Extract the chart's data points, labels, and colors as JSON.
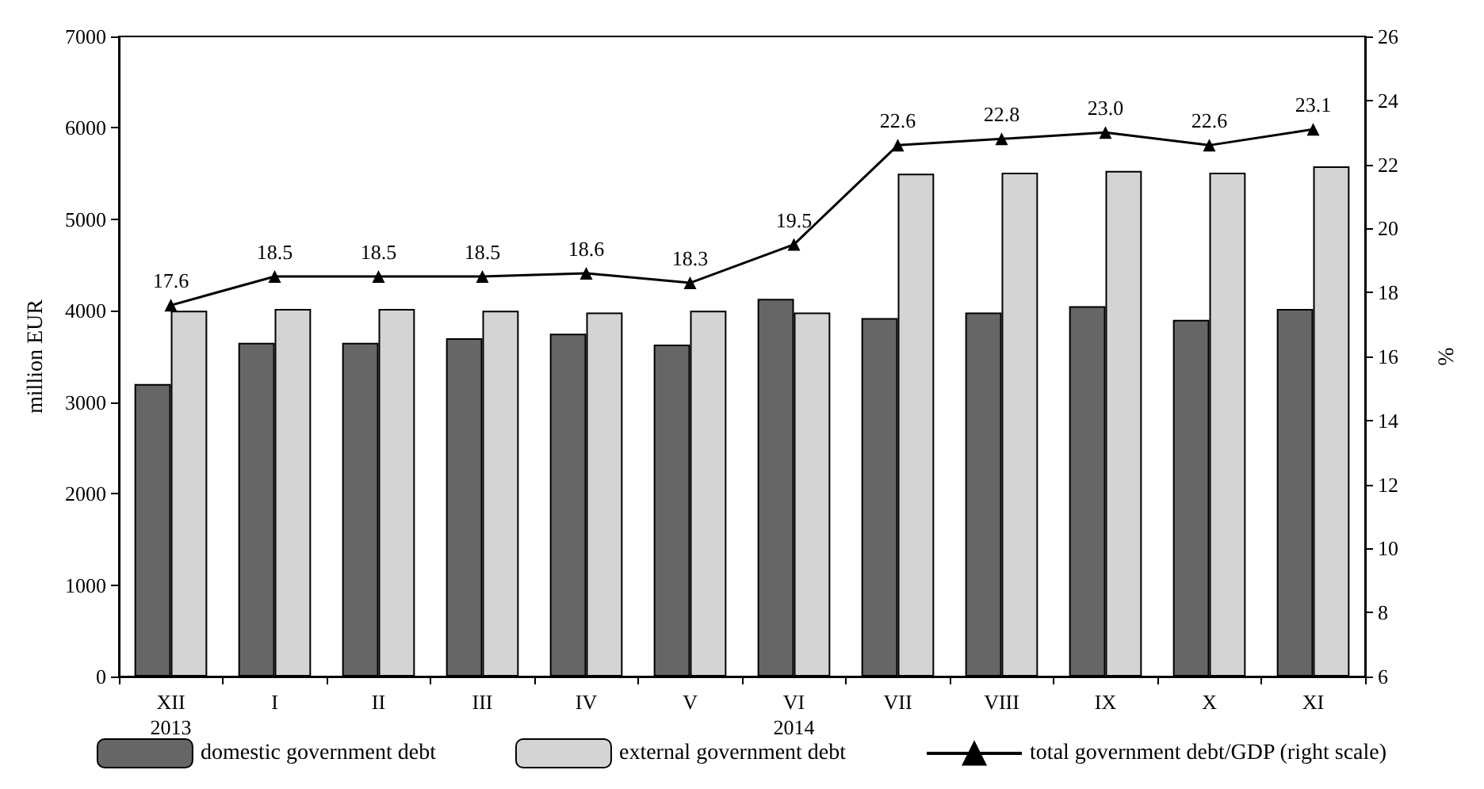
{
  "chart_data": {
    "type": "bar",
    "xlabel": null,
    "ylabel": "million EUR",
    "y2label": "%",
    "categories": [
      "XII\n2013",
      "I",
      "II",
      "III",
      "IV",
      "V",
      "VI\n2014",
      "VII",
      "VIII",
      "IX",
      "X",
      "XI"
    ],
    "series": [
      {
        "name": "domestic government debt",
        "color": "#666666",
        "values": [
          3200,
          3650,
          3650,
          3700,
          3750,
          3630,
          4130,
          3920,
          3980,
          4050,
          3900,
          4020
        ]
      },
      {
        "name": "external government debt",
        "color": "#d4d4d4",
        "values": [
          4000,
          4020,
          4020,
          4000,
          3980,
          4000,
          3980,
          5500,
          5510,
          5530,
          5510,
          5580
        ]
      },
      {
        "name": "total government debt/GDP (right scale)",
        "type": "line",
        "axis": "y2",
        "color": "#000000",
        "marker": "triangle",
        "values": [
          17.6,
          18.5,
          18.5,
          18.5,
          18.6,
          18.3,
          19.5,
          22.6,
          22.8,
          23.0,
          22.6,
          23.1
        ],
        "value_labels": [
          "17.6",
          "18.5",
          "18.5",
          "18.5",
          "18.6",
          "18.3",
          "19.5",
          "22.6",
          "22.8",
          "23.0",
          "22.6",
          "23.1"
        ]
      }
    ],
    "ylim": [
      0,
      7000
    ],
    "yticks": [
      0,
      1000,
      2000,
      3000,
      4000,
      5000,
      6000,
      7000
    ],
    "y2lim": [
      6,
      26
    ],
    "y2ticks": [
      6,
      8,
      10,
      12,
      14,
      16,
      18,
      20,
      22,
      24,
      26
    ],
    "grid": false,
    "legend": "bottom"
  }
}
